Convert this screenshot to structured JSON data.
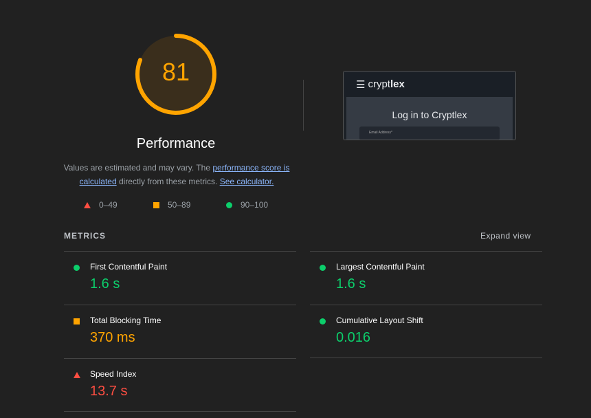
{
  "gauge": {
    "score": "81",
    "value": 81,
    "color": "#ffa400",
    "title": "Performance"
  },
  "description": {
    "text1": "Values are estimated and may vary. The ",
    "link1": "performance score is calculated",
    "text2": " directly from these metrics. ",
    "link2": "See calculator."
  },
  "legend": [
    {
      "icon": "triangle-red",
      "label": "0–49"
    },
    {
      "icon": "square-orange",
      "label": "50–89"
    },
    {
      "icon": "circle-green",
      "label": "90–100"
    }
  ],
  "thumbnail": {
    "brand_light": "crypt",
    "brand_bold": "lex",
    "heading": "Log in to Cryptlex",
    "field": "Email Address*"
  },
  "metrics": {
    "label": "METRICS",
    "expand": "Expand view",
    "items": [
      {
        "name": "First Contentful Paint",
        "value": "1.6 s",
        "status": "good"
      },
      {
        "name": "Largest Contentful Paint",
        "value": "1.6 s",
        "status": "good"
      },
      {
        "name": "Total Blocking Time",
        "value": "370 ms",
        "status": "average"
      },
      {
        "name": "Cumulative Layout Shift",
        "value": "0.016",
        "status": "good"
      },
      {
        "name": "Speed Index",
        "value": "13.7 s",
        "status": "fail"
      }
    ]
  },
  "colors": {
    "good": "#0cce6b",
    "average": "#ffa400",
    "fail": "#ff4e42",
    "link": "#8ab4f8"
  }
}
